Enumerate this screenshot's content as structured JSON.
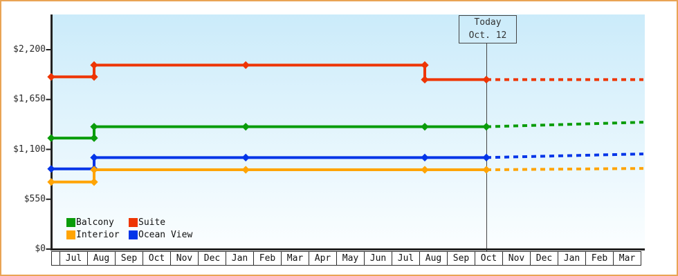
{
  "frame": {
    "border_color": "#e9a455",
    "background": "#ffffff"
  },
  "chart_data": {
    "type": "line",
    "title": "",
    "xlabel": "",
    "ylabel": "",
    "grid": false,
    "legend_position": "bottom-left-inside",
    "plot": {
      "bg_top": "#cbebfa",
      "bg_bottom": "#fbfeff",
      "axis_color": "#222222",
      "today_line_color": "#444444"
    },
    "y_ticks": {
      "values": [
        0,
        550,
        1100,
        1650,
        2200
      ],
      "labels": [
        "$0",
        "$550",
        "$1,100",
        "$1,650",
        "$2,200"
      ]
    },
    "ylim": [
      0,
      2200
    ],
    "x_months": [
      "Jul",
      "Aug",
      "Sep",
      "Oct",
      "Nov",
      "Dec",
      "Jan",
      "Feb",
      "Mar",
      "Apr",
      "May",
      "Jun",
      "Jul",
      "Aug",
      "Sep",
      "Oct",
      "Nov",
      "Dec",
      "Jan",
      "Feb",
      "Mar"
    ],
    "today": {
      "line1": "Today",
      "line2": "Oct. 12",
      "x": 15.425
    },
    "x_end": 21.1,
    "series": [
      {
        "name": "Suite",
        "color": "#ee3503",
        "solid": [
          [
            -0.3,
            1900
          ],
          [
            1.25,
            1900
          ],
          [
            1.25,
            2030
          ],
          [
            6.73,
            2030
          ],
          [
            13.2,
            2030
          ],
          [
            13.2,
            1870
          ],
          [
            15.425,
            1870
          ]
        ],
        "dashed": [
          [
            15.425,
            1870
          ],
          [
            21.1,
            1870
          ]
        ]
      },
      {
        "name": "Balcony",
        "color": "#0a9c0a",
        "solid": [
          [
            -0.3,
            1225
          ],
          [
            1.25,
            1225
          ],
          [
            1.25,
            1350
          ],
          [
            6.73,
            1350
          ],
          [
            13.2,
            1350
          ],
          [
            15.425,
            1350
          ]
        ],
        "dashed": [
          [
            15.425,
            1350
          ],
          [
            21.1,
            1400
          ]
        ]
      },
      {
        "name": "Ocean View",
        "color": "#0435e8",
        "solid": [
          [
            -0.3,
            885
          ],
          [
            1.25,
            885
          ],
          [
            1.25,
            1010
          ],
          [
            6.73,
            1010
          ],
          [
            13.2,
            1010
          ],
          [
            15.425,
            1010
          ]
        ],
        "dashed": [
          [
            15.425,
            1010
          ],
          [
            21.1,
            1050
          ]
        ]
      },
      {
        "name": "Interior",
        "color": "#ffa405",
        "solid": [
          [
            -0.3,
            740
          ],
          [
            1.25,
            740
          ],
          [
            1.25,
            875
          ],
          [
            6.73,
            875
          ],
          [
            13.2,
            875
          ],
          [
            15.425,
            875
          ]
        ],
        "dashed": [
          [
            15.425,
            875
          ],
          [
            21.1,
            890
          ]
        ]
      }
    ],
    "legend": [
      {
        "label": "Balcony",
        "color": "#0a9c0a"
      },
      {
        "label": "Suite",
        "color": "#ee3503"
      },
      {
        "label": "Interior",
        "color": "#ffa405"
      },
      {
        "label": "Ocean View",
        "color": "#0435e8"
      }
    ]
  }
}
